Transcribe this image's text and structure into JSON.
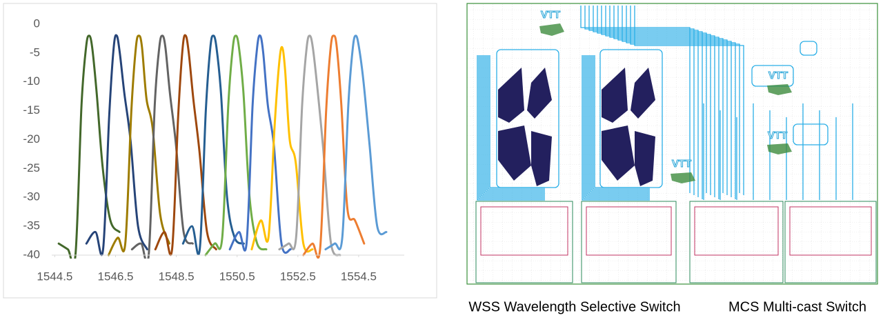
{
  "chart_data": {
    "type": "line",
    "xlim": [
      1544.4,
      1556.0
    ],
    "ylim": [
      -40,
      0
    ],
    "xticks": [
      1544.5,
      1546.5,
      1548.5,
      1550.5,
      1552.5,
      1554.5
    ],
    "yticks": [
      0,
      -5,
      -10,
      -15,
      -20,
      -25,
      -30,
      -35,
      -40
    ],
    "grid": false,
    "series": [
      {
        "color": "#43682b",
        "x": [
          1544.63,
          1544.93,
          1545.18,
          1545.38,
          1545.53,
          1545.63,
          1545.73,
          1545.88,
          1546.08,
          1546.33,
          1546.63
        ],
        "values": [
          -38,
          -39,
          -40,
          -14,
          -4,
          -2,
          -4,
          -12,
          -25,
          -34,
          -36
        ]
      },
      {
        "color": "#264478",
        "x": [
          1545.54,
          1545.84,
          1546.09,
          1546.29,
          1546.44,
          1546.54,
          1546.64,
          1546.79,
          1546.99,
          1547.24,
          1547.54
        ],
        "values": [
          -38,
          -36,
          -39,
          -16,
          -4,
          -2,
          -5,
          -12,
          -20,
          -35,
          -39
        ]
      },
      {
        "color": "#9e7c00",
        "x": [
          1546.27,
          1546.57,
          1546.82,
          1547.02,
          1547.17,
          1547.27,
          1547.37,
          1547.52,
          1547.72,
          1547.97,
          1548.27
        ],
        "values": [
          -40,
          -37,
          -38,
          -15,
          -4,
          -2,
          -4,
          -13,
          -18,
          -33,
          -38
        ]
      },
      {
        "color": "#636363",
        "x": [
          1547.04,
          1547.34,
          1547.59,
          1547.79,
          1547.94,
          1548.04,
          1548.14,
          1548.29,
          1548.49,
          1548.74,
          1549.04
        ],
        "values": [
          -39,
          -38,
          -40,
          -14,
          -4,
          -2,
          -4,
          -12,
          -21,
          -36,
          -38
        ]
      },
      {
        "color": "#9e480e",
        "x": [
          1547.81,
          1548.11,
          1548.36,
          1548.56,
          1548.71,
          1548.81,
          1548.91,
          1549.06,
          1549.26,
          1549.51,
          1549.81
        ],
        "values": [
          -39,
          -36,
          -39,
          -16,
          -4,
          -2,
          -5,
          -13,
          -22,
          -36,
          -39
        ]
      },
      {
        "color": "#255e91",
        "x": [
          1548.72,
          1549.02,
          1549.27,
          1549.47,
          1549.62,
          1549.72,
          1549.82,
          1549.97,
          1550.17,
          1550.42,
          1550.72
        ],
        "values": [
          -38,
          -35,
          -39,
          -15,
          -4,
          -2,
          -4,
          -12,
          -30,
          -37,
          -38
        ]
      },
      {
        "color": "#70ad47",
        "x": [
          1549.46,
          1549.76,
          1550.01,
          1550.21,
          1550.36,
          1550.46,
          1550.56,
          1550.71,
          1550.91,
          1551.16,
          1551.46
        ],
        "values": [
          -40,
          -38,
          -37,
          -14,
          -4,
          -2,
          -4,
          -12,
          -30,
          -38,
          -39
        ]
      },
      {
        "color": "#4472c4",
        "x": [
          1550.26,
          1550.56,
          1550.81,
          1551.01,
          1551.16,
          1551.26,
          1551.36,
          1551.51,
          1551.71,
          1551.96,
          1552.26
        ],
        "values": [
          -39,
          -36,
          -38,
          -14,
          -4,
          -2,
          -5,
          -14,
          -21,
          -38,
          -39
        ]
      },
      {
        "color": "#ffc000",
        "x": [
          1550.98,
          1551.28,
          1551.53,
          1551.73,
          1551.88,
          1551.98,
          1552.08,
          1552.23,
          1552.43,
          1552.68,
          1552.98
        ],
        "values": [
          -39,
          -34,
          -37,
          -18,
          -7,
          -4,
          -8,
          -20,
          -24,
          -38,
          -39
        ]
      },
      {
        "color": "#a5a5a5",
        "x": [
          1551.89,
          1552.19,
          1552.44,
          1552.64,
          1552.79,
          1552.89,
          1552.99,
          1553.14,
          1553.34,
          1553.59,
          1553.89
        ],
        "values": [
          -39,
          -38,
          -37,
          -14,
          -4,
          -2,
          -4,
          -11,
          -22,
          -38,
          -40
        ]
      },
      {
        "color": "#ed7d31",
        "x": [
          1552.68,
          1552.98,
          1553.23,
          1553.43,
          1553.58,
          1553.68,
          1553.78,
          1553.93,
          1554.13,
          1554.38,
          1554.68
        ],
        "values": [
          -40,
          -38,
          -39,
          -15,
          -4,
          -2,
          -4,
          -14,
          -32,
          -34,
          -38
        ]
      },
      {
        "color": "#5b9bd5",
        "x": [
          1553.41,
          1553.71,
          1553.96,
          1554.16,
          1554.31,
          1554.41,
          1554.51,
          1554.66,
          1554.86,
          1555.11,
          1555.41
        ],
        "values": [
          -39,
          -38,
          -37,
          -14,
          -4,
          -2,
          -4,
          -10,
          -21,
          -35,
          -36
        ]
      }
    ]
  },
  "diagram": {
    "logos": [
      "VTT",
      "VTT",
      "VTT",
      "VTT"
    ],
    "captions": [
      "WSS Wavelength Selective Switch",
      "MCS Multi-cast Switch"
    ]
  }
}
